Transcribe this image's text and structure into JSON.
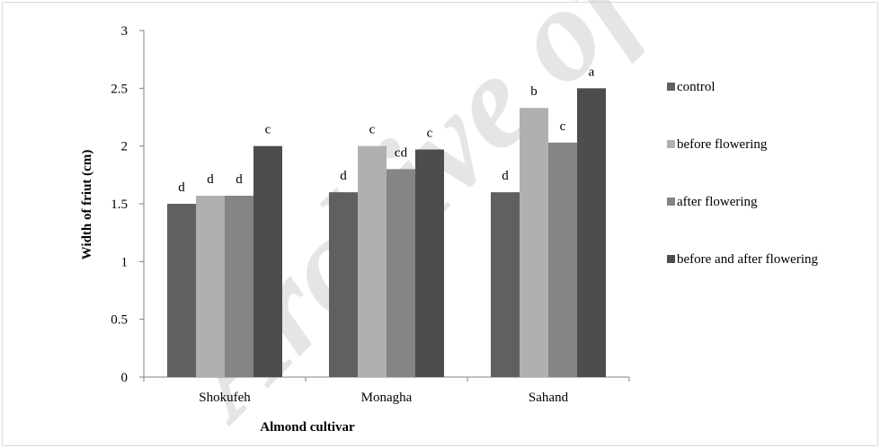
{
  "chart_data": {
    "type": "bar",
    "categories": [
      "Shokufeh",
      "Monagha",
      "Sahand"
    ],
    "series": [
      {
        "name": "control",
        "color": "#606060",
        "values": [
          1.5,
          1.6,
          1.6
        ],
        "labels": [
          "d",
          "d",
          "d"
        ]
      },
      {
        "name": "before flowering",
        "color": "#b0b0b0",
        "values": [
          1.57,
          2.0,
          2.33
        ],
        "labels": [
          "d",
          "c",
          "b"
        ]
      },
      {
        "name": "after flowering",
        "color": "#858585",
        "values": [
          1.57,
          1.8,
          2.03
        ],
        "labels": [
          "d",
          "cd",
          "c"
        ]
      },
      {
        "name": "before and after flowering",
        "color": "#4d4d4d",
        "values": [
          2.0,
          1.97,
          2.5
        ],
        "labels": [
          "c",
          "c",
          "a"
        ]
      }
    ],
    "xlabel": "Almond cultivar",
    "ylabel": "Width of friut (cm)",
    "ylim": [
      0,
      3
    ],
    "yticks": [
      "0",
      "0.5",
      "1",
      "1.5",
      "2",
      "2.5",
      "3"
    ],
    "legend_position": "right",
    "grid": false
  },
  "watermark": "Archive of SID"
}
